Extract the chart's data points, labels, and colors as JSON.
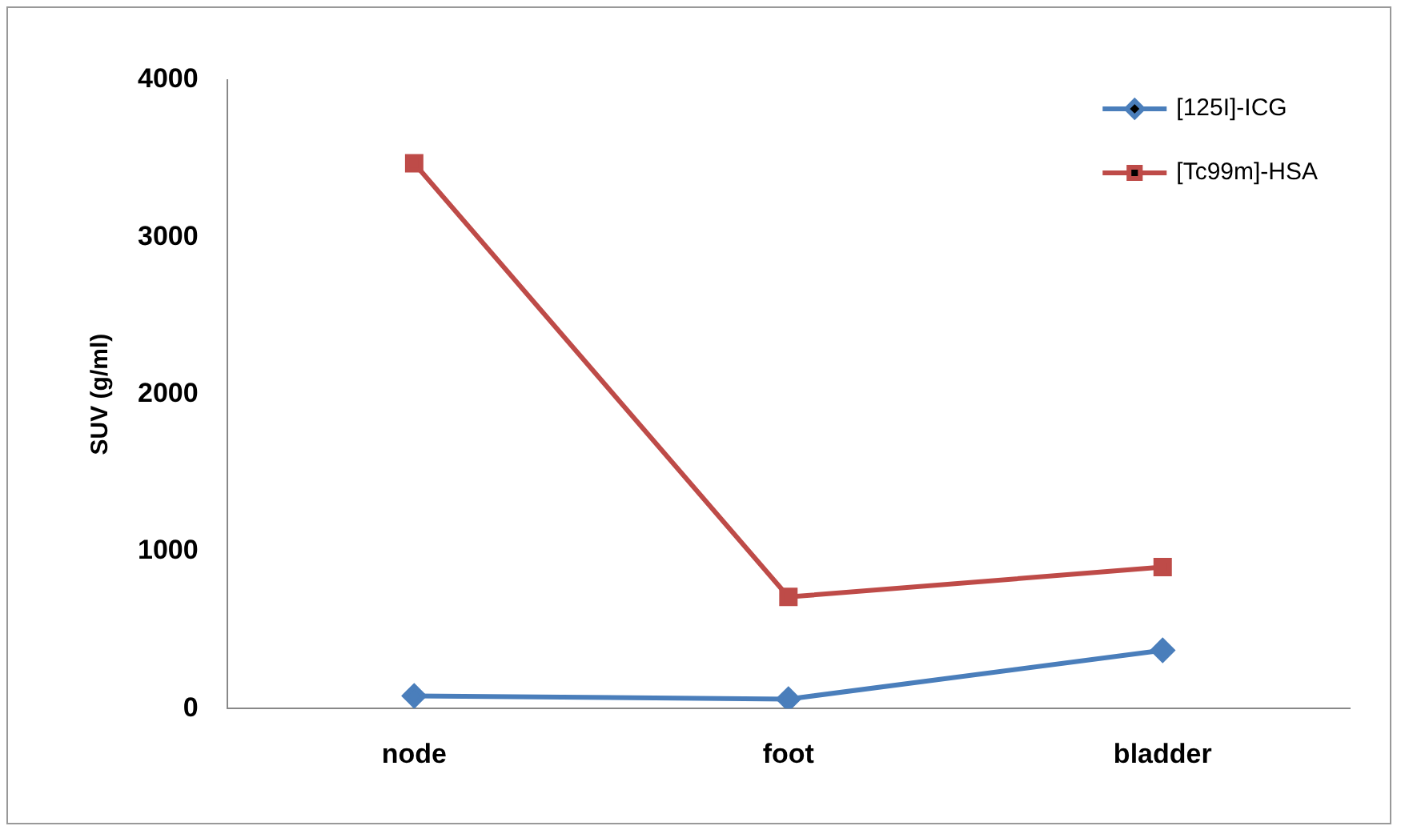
{
  "chart_data": {
    "type": "line",
    "ylabel": "SUV (g/ml)",
    "categories": [
      "node",
      "foot",
      "bladder"
    ],
    "series": [
      {
        "name": "[125I]-ICG",
        "color": "#4a7ebb",
        "marker": "diamond",
        "values": [
          80,
          60,
          370
        ]
      },
      {
        "name": "[Tc99m]-HSA",
        "color": "#be4b48",
        "marker": "square",
        "values": [
          3470,
          710,
          900
        ]
      }
    ],
    "ylim": [
      0,
      4000
    ],
    "yticks": [
      0,
      1000,
      2000,
      3000,
      4000
    ],
    "grid": false,
    "legend": "top right",
    "line_style": "solid"
  }
}
